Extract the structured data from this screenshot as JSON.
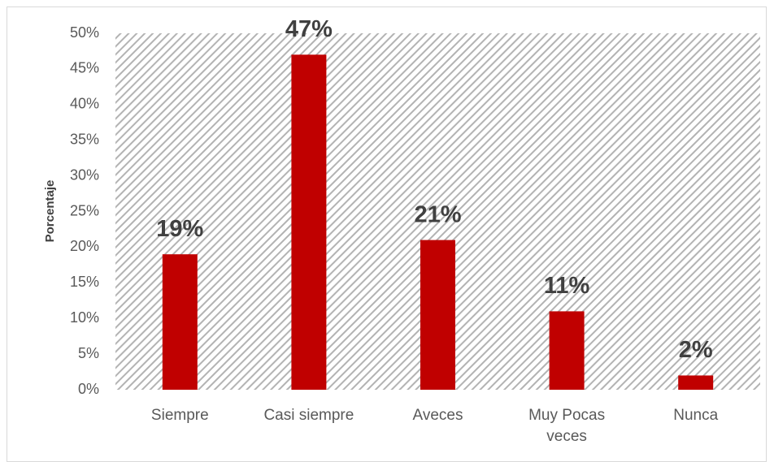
{
  "chart_data": {
    "type": "bar",
    "y_label": "Porcentaje",
    "categories": [
      "Siempre",
      "Casi siempre",
      "Aveces",
      "Muy Pocas veces",
      "Nunca"
    ],
    "values": [
      19,
      47,
      21,
      11,
      2
    ],
    "value_labels": [
      "19%",
      "47%",
      "21%",
      "11%",
      "2%"
    ],
    "color": "#c00000",
    "ylim": [
      0,
      50
    ],
    "yticks": [
      {
        "value": 0,
        "label": "0%"
      },
      {
        "value": 5,
        "label": "5%"
      },
      {
        "value": 10,
        "label": "10%"
      },
      {
        "value": 15,
        "label": "15%"
      },
      {
        "value": 20,
        "label": "20%"
      },
      {
        "value": 25,
        "label": "25%"
      },
      {
        "value": 30,
        "label": "30%"
      },
      {
        "value": 35,
        "label": "35%"
      },
      {
        "value": 40,
        "label": "40%"
      },
      {
        "value": 45,
        "label": "45%"
      },
      {
        "value": 50,
        "label": "50%"
      }
    ]
  }
}
